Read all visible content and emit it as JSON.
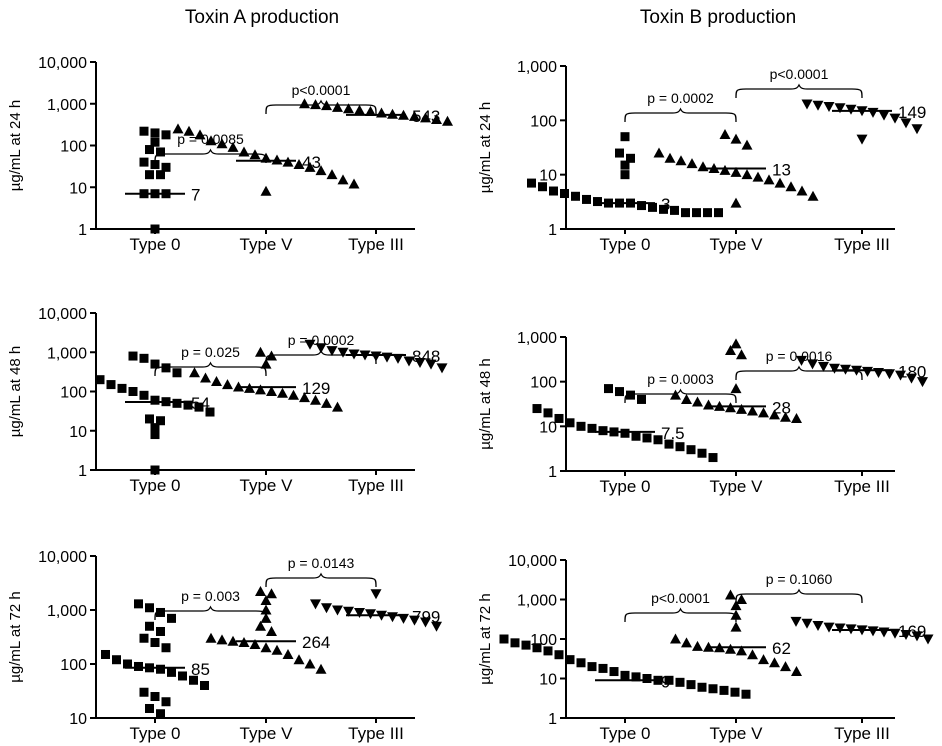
{
  "columns": {
    "left": "Toxin A production",
    "right": "Toxin B production"
  },
  "chart_data": [
    {
      "type": "scatter",
      "title": "Toxin A production",
      "ylabel": "µg/mL at 24 h",
      "yscale": "log",
      "ylim": [
        1,
        10000
      ],
      "yticks": [
        "1",
        "10",
        "100",
        "1,000",
        "10,000"
      ],
      "categories": [
        "Type 0",
        "Type V",
        "Type III"
      ],
      "markers": [
        "square",
        "triangle-up",
        "triangle-up"
      ],
      "medians": [
        7,
        43,
        543
      ],
      "median_labels": [
        "7",
        "43",
        "543"
      ],
      "series": [
        {
          "values": [
            1,
            7,
            7,
            7,
            20,
            20,
            30,
            35,
            40,
            70,
            80,
            120,
            180,
            200,
            220
          ]
        },
        {
          "values": [
            8,
            12,
            15,
            20,
            25,
            30,
            35,
            40,
            45,
            50,
            60,
            70,
            90,
            110,
            130,
            180,
            220,
            250
          ]
        },
        {
          "values": [
            380,
            420,
            460,
            500,
            530,
            560,
            600,
            650,
            700,
            760,
            820,
            900,
            950,
            1000
          ]
        }
      ],
      "brackets": [
        {
          "from": 0,
          "to": 1,
          "label": "p = 0.0085"
        },
        {
          "from": 1,
          "to": 2,
          "label": "p<0.0001"
        }
      ]
    },
    {
      "type": "scatter",
      "title": "Toxin B production",
      "ylabel": "µg/mL at 24 h",
      "yscale": "log",
      "ylim": [
        1,
        1000
      ],
      "yticks": [
        "1",
        "10",
        "100",
        "1,000"
      ],
      "categories": [
        "Type 0",
        "Type V",
        "Type III"
      ],
      "markers": [
        "square",
        "triangle-up",
        "triangle-down"
      ],
      "medians": [
        3,
        13,
        149
      ],
      "median_labels": [
        "3",
        "13",
        "149"
      ],
      "series": [
        {
          "values": [
            2,
            2,
            2,
            2,
            2.2,
            2.3,
            2.5,
            2.7,
            3,
            3,
            3,
            3.2,
            3.5,
            4,
            4.5,
            5,
            6,
            7,
            10,
            15,
            20,
            25,
            50
          ]
        },
        {
          "values": [
            3,
            4,
            5,
            6,
            7,
            8,
            9,
            10,
            11,
            12,
            13,
            14,
            16,
            18,
            20,
            25,
            35,
            45,
            55
          ]
        },
        {
          "values": [
            45,
            70,
            90,
            110,
            125,
            140,
            150,
            160,
            170,
            180,
            190,
            200
          ]
        }
      ],
      "brackets": [
        {
          "from": 0,
          "to": 1,
          "label": "p = 0.0002"
        },
        {
          "from": 1,
          "to": 2,
          "label": "p<0.0001"
        }
      ]
    },
    {
      "type": "scatter",
      "title": "Toxin A production",
      "ylabel": "µg/mL at 48 h",
      "yscale": "log",
      "ylim": [
        1,
        10000
      ],
      "yticks": [
        "1",
        "10",
        "100",
        "1,000",
        "10,000"
      ],
      "categories": [
        "Type 0",
        "Type V",
        "Type III"
      ],
      "markers": [
        "square",
        "triangle-up",
        "triangle-down"
      ],
      "medians": [
        54,
        129,
        848
      ],
      "median_labels": [
        "54",
        "129",
        "848"
      ],
      "series": [
        {
          "values": [
            1,
            8,
            12,
            18,
            20,
            30,
            40,
            45,
            50,
            55,
            60,
            80,
            100,
            120,
            150,
            200,
            300,
            400,
            500,
            700,
            800
          ]
        },
        {
          "values": [
            40,
            50,
            60,
            70,
            80,
            90,
            100,
            110,
            120,
            130,
            150,
            180,
            220,
            300,
            500,
            800,
            1000
          ]
        },
        {
          "values": [
            400,
            500,
            550,
            600,
            700,
            750,
            800,
            850,
            900,
            1000,
            1100,
            1300,
            1600
          ]
        }
      ],
      "brackets": [
        {
          "from": 0,
          "to": 1,
          "label": "p = 0.025"
        },
        {
          "from": 1,
          "to": 2,
          "label": "p = 0.0002"
        }
      ]
    },
    {
      "type": "scatter",
      "title": "Toxin B production",
      "ylabel": "µg/mL at 48 h",
      "yscale": "log",
      "ylim": [
        1,
        1000
      ],
      "yticks": [
        "1",
        "10",
        "100",
        "1,000"
      ],
      "categories": [
        "Type 0",
        "Type V",
        "Type III"
      ],
      "markers": [
        "square",
        "triangle-up",
        "triangle-down"
      ],
      "medians": [
        7.5,
        28,
        180
      ],
      "median_labels": [
        "7.5",
        "28",
        "180"
      ],
      "series": [
        {
          "values": [
            2,
            2.5,
            3,
            3.5,
            4,
            5,
            5.5,
            6,
            7,
            7.5,
            8,
            9,
            10,
            12,
            15,
            20,
            25,
            40,
            50,
            60,
            70
          ]
        },
        {
          "values": [
            15,
            16,
            18,
            20,
            22,
            24,
            26,
            28,
            30,
            35,
            40,
            50,
            70,
            400,
            500,
            700
          ]
        },
        {
          "values": [
            100,
            120,
            140,
            150,
            160,
            170,
            180,
            190,
            200,
            220,
            250,
            300
          ]
        }
      ],
      "brackets": [
        {
          "from": 0,
          "to": 1,
          "label": "p = 0.0003"
        },
        {
          "from": 1,
          "to": 2,
          "label": "p = 0.0016"
        }
      ]
    },
    {
      "type": "scatter",
      "title": "Toxin A production",
      "ylabel": "µg/mL at 72 h",
      "yscale": "log",
      "ylim": [
        10,
        10000
      ],
      "yticks": [
        "10",
        "100",
        "1,000",
        "10,000"
      ],
      "categories": [
        "Type 0",
        "Type V",
        "Type III"
      ],
      "markers": [
        "square",
        "triangle-up",
        "triangle-down"
      ],
      "medians": [
        85,
        264,
        799
      ],
      "median_labels": [
        "85",
        "264",
        "799"
      ],
      "series": [
        {
          "values": [
            12,
            15,
            20,
            25,
            30,
            40,
            50,
            60,
            70,
            80,
            85,
            90,
            100,
            120,
            150,
            200,
            250,
            300,
            400,
            500,
            700,
            900,
            1100,
            1300
          ]
        },
        {
          "values": [
            80,
            100,
            120,
            150,
            180,
            200,
            230,
            250,
            264,
            280,
            300,
            400,
            500,
            700,
            1000,
            1500,
            2000,
            2200
          ]
        },
        {
          "values": [
            500,
            600,
            650,
            700,
            750,
            800,
            850,
            900,
            950,
            1000,
            1100,
            1300,
            2000
          ]
        }
      ],
      "brackets": [
        {
          "from": 0,
          "to": 1,
          "label": "p = 0.003"
        },
        {
          "from": 1,
          "to": 2,
          "label": "p = 0.0143"
        }
      ]
    },
    {
      "type": "scatter",
      "title": "Toxin B production",
      "ylabel": "µg/mL at 72 h",
      "yscale": "log",
      "ylim": [
        1,
        10000
      ],
      "yticks": [
        "1",
        "10",
        "100",
        "1,000",
        "10,000"
      ],
      "categories": [
        "Type 0",
        "Type V",
        "Type III"
      ],
      "markers": [
        "square",
        "triangle-up",
        "triangle-down"
      ],
      "medians": [
        9,
        62,
        169
      ],
      "median_labels": [
        "9",
        "62",
        "169"
      ],
      "series": [
        {
          "values": [
            4,
            4.5,
            5,
            5.5,
            6,
            7,
            8,
            9,
            9,
            10,
            11,
            12,
            15,
            18,
            20,
            25,
            30,
            40,
            50,
            60,
            70,
            80,
            100
          ]
        },
        {
          "values": [
            15,
            20,
            25,
            30,
            40,
            50,
            55,
            60,
            62,
            65,
            80,
            100,
            200,
            400,
            700,
            1000,
            1300
          ]
        },
        {
          "values": [
            100,
            120,
            130,
            140,
            150,
            160,
            170,
            180,
            190,
            200,
            220,
            250,
            280
          ]
        }
      ],
      "brackets": [
        {
          "from": 0,
          "to": 1,
          "label": "p<0.0001"
        },
        {
          "from": 1,
          "to": 2,
          "label": "p = 0.1060"
        }
      ]
    }
  ]
}
